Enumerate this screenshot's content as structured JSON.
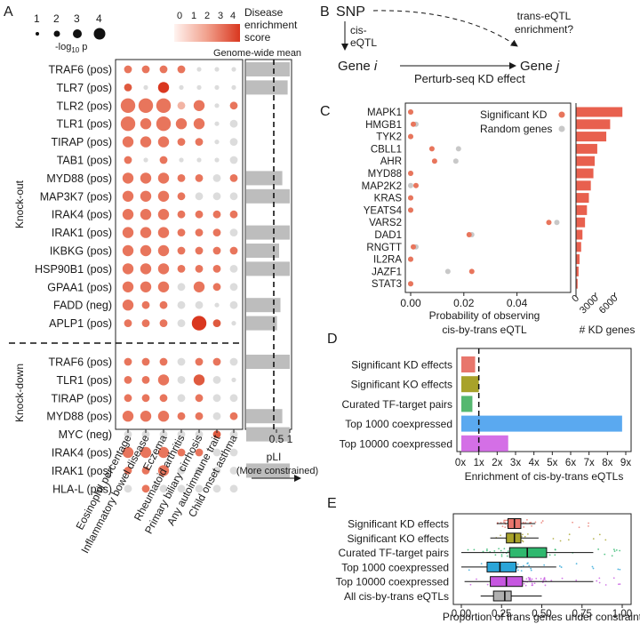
{
  "panels": {
    "a": "A",
    "b": "B",
    "c": "C",
    "d": "D",
    "e": "E"
  },
  "panel_a": {
    "size_legend": {
      "values": [
        "1",
        "2",
        "3",
        "4"
      ],
      "title": "-log",
      "title_sub": "10",
      "title_tail": " p"
    },
    "color_legend": {
      "ticks": [
        "0",
        "1",
        "2",
        "3",
        "4"
      ],
      "title_lines": [
        "Disease",
        "enrichment",
        "score"
      ],
      "low": "#fde9e5",
      "high": "#d9371f"
    },
    "genome_wide_label": "Genome-wide mean",
    "group_knockout": "Knock-out",
    "group_knockdown": "Knock-down",
    "diseases": [
      "Eosinophil percentage",
      "Inflammatory bowel disease",
      "Eczema",
      "Rheumatoid arthritis",
      "Primary biliary cirrhosis",
      "Any autoimmune trait",
      "Child onset asthma"
    ],
    "pli_axis": {
      "ticks": [
        "0.5",
        "1"
      ],
      "title": "pLI",
      "subtitle": "(More constrained)",
      "genome_wide_mean": 0.4
    },
    "dot_colors": {
      "sig": "#e8755c",
      "grey": "#d9d9d9"
    }
  },
  "panel_b": {
    "snp": "SNP",
    "cis_label_1": "cis-",
    "cis_label_2": "eQTL",
    "trans_label_1": "trans-eQTL",
    "trans_label_2": "enrichment?",
    "gene_i": "Gene ",
    "gene_i_var": "i",
    "gene_j": "Gene ",
    "gene_j_var": "j",
    "kd_effect": "Perturb-seq KD effect"
  },
  "panel_d": {
    "xlabel": "Enrichment of cis-by-trans eQTLs"
  },
  "panel_e": {
    "xlabel": "Proportion of trans genes under constraint"
  },
  "chart_data": [
    {
      "id": "A",
      "type": "scatter",
      "subtype": "dot-matrix with pLI bars",
      "rows": [
        {
          "group": "Knock-out",
          "gene": "TRAF6 (pos)",
          "sizes": [
            2,
            2,
            2,
            2,
            1,
            1,
            1
          ],
          "scores": [
            2,
            2,
            2,
            2,
            0,
            0,
            0
          ],
          "pli": 1.0
        },
        {
          "group": "Knock-out",
          "gene": "TLR7 (pos)",
          "sizes": [
            2,
            1,
            3,
            1,
            1,
            1,
            1
          ],
          "scores": [
            3,
            0,
            4,
            0,
            0,
            0,
            0
          ],
          "pli": 0.92
        },
        {
          "group": "Knock-out",
          "gene": "TLR2 (pos)",
          "sizes": [
            4,
            4,
            4,
            2,
            3,
            1,
            2
          ],
          "scores": [
            2,
            2,
            2,
            1,
            2,
            0,
            2
          ],
          "pli": 0.0
        },
        {
          "group": "Knock-out",
          "gene": "TLR1 (pos)",
          "sizes": [
            4,
            3,
            4,
            3,
            3,
            1,
            2
          ],
          "scores": [
            2,
            2,
            2,
            2,
            2,
            0,
            0
          ],
          "pli": 0.0
        },
        {
          "group": "Knock-out",
          "gene": "TIRAP (pos)",
          "sizes": [
            3,
            3,
            3,
            2,
            2,
            1,
            2
          ],
          "scores": [
            2,
            2,
            2,
            2,
            2,
            0,
            0
          ],
          "pli": 0.0
        },
        {
          "group": "Knock-out",
          "gene": "TAB1 (pos)",
          "sizes": [
            2,
            1,
            2,
            1,
            1,
            1,
            2
          ],
          "scores": [
            2,
            0,
            2,
            0,
            0,
            0,
            0
          ],
          "pli": 0.0
        },
        {
          "group": "Knock-out",
          "gene": "MYD88 (pos)",
          "sizes": [
            3,
            3,
            3,
            2,
            2,
            2,
            2
          ],
          "scores": [
            2,
            2,
            2,
            2,
            2,
            0,
            2
          ],
          "pli": 0.72
        },
        {
          "group": "Knock-out",
          "gene": "MAP3K7 (pos)",
          "sizes": [
            3,
            3,
            3,
            2,
            2,
            2,
            2
          ],
          "scores": [
            2,
            2,
            2,
            2,
            0,
            0,
            0
          ],
          "pli": 1.0
        },
        {
          "group": "Knock-out",
          "gene": "IRAK4 (pos)",
          "sizes": [
            3,
            3,
            3,
            2,
            2,
            2,
            2
          ],
          "scores": [
            2,
            2,
            2,
            2,
            2,
            2,
            2
          ],
          "pli": 0.0
        },
        {
          "group": "Knock-out",
          "gene": "IRAK1 (pos)",
          "sizes": [
            3,
            3,
            3,
            2,
            2,
            2,
            2
          ],
          "scores": [
            2,
            2,
            2,
            2,
            2,
            2,
            0
          ],
          "pli": 1.0
        },
        {
          "group": "Knock-out",
          "gene": "IKBKG (pos)",
          "sizes": [
            3,
            3,
            3,
            2,
            2,
            2,
            2
          ],
          "scores": [
            2,
            2,
            2,
            2,
            2,
            2,
            2
          ],
          "pli": 0.6
        },
        {
          "group": "Knock-out",
          "gene": "HSP90B1 (pos)",
          "sizes": [
            3,
            3,
            3,
            2,
            2,
            2,
            2
          ],
          "scores": [
            2,
            2,
            2,
            2,
            2,
            2,
            0
          ],
          "pli": 1.0
        },
        {
          "group": "Knock-out",
          "gene": "GPAA1 (pos)",
          "sizes": [
            3,
            3,
            3,
            2,
            3,
            2,
            2
          ],
          "scores": [
            2,
            2,
            2,
            0,
            2,
            2,
            0
          ],
          "pli": 0.0
        },
        {
          "group": "Knock-out",
          "gene": "FADD (neg)",
          "sizes": [
            3,
            2,
            2,
            2,
            2,
            1,
            2
          ],
          "scores": [
            2,
            2,
            2,
            0,
            0,
            0,
            0
          ],
          "pli": 0.65
        },
        {
          "group": "Knock-out",
          "gene": "APLP1 (pos)",
          "sizes": [
            2,
            2,
            2,
            2,
            4,
            2,
            1
          ],
          "scores": [
            2,
            2,
            2,
            0,
            4,
            3,
            0
          ],
          "pli": 0.52
        },
        {
          "group": "Knock-down",
          "gene": "TRAF6 (pos)",
          "sizes": [
            2,
            2,
            2,
            2,
            2,
            2,
            2
          ],
          "scores": [
            2,
            2,
            2,
            0,
            2,
            2,
            0
          ],
          "pli": 1.0
        },
        {
          "group": "Knock-down",
          "gene": "TLR1 (pos)",
          "sizes": [
            2,
            2,
            3,
            2,
            3,
            2,
            1
          ],
          "scores": [
            2,
            2,
            2,
            0,
            3,
            0,
            0
          ],
          "pli": 0.0
        },
        {
          "group": "Knock-down",
          "gene": "TIRAP (pos)",
          "sizes": [
            2,
            2,
            2,
            2,
            2,
            2,
            2
          ],
          "scores": [
            2,
            2,
            2,
            0,
            2,
            0,
            0
          ],
          "pli": 0.0
        },
        {
          "group": "Knock-down",
          "gene": "MYD88 (pos)",
          "sizes": [
            3,
            3,
            3,
            2,
            2,
            2,
            2
          ],
          "scores": [
            2,
            2,
            2,
            2,
            2,
            0,
            2
          ],
          "pli": 0.72
        },
        {
          "group": "Knock-down",
          "gene": "MYC (neg)",
          "sizes": [
            2,
            2,
            2,
            2,
            2,
            2,
            2
          ],
          "scores": [
            0,
            0,
            0,
            0,
            0,
            3,
            0
          ],
          "pli": 1.0
        },
        {
          "group": "Knock-down",
          "gene": "IRAK4 (pos)",
          "sizes": [
            3,
            3,
            3,
            2,
            2,
            2,
            2
          ],
          "scores": [
            2,
            2,
            2,
            2,
            2,
            0,
            0
          ],
          "pli": 0.0
        },
        {
          "group": "Knock-down",
          "gene": "IRAK1 (pos)",
          "sizes": [
            2,
            2,
            3,
            2,
            2,
            2,
            2
          ],
          "scores": [
            2,
            2,
            2,
            0,
            0,
            0,
            0
          ],
          "pli": 1.0
        },
        {
          "group": "Knock-down",
          "gene": "HLA-L (pos)",
          "sizes": [
            2,
            2,
            2,
            2,
            2,
            2,
            2
          ],
          "scores": [
            0,
            2,
            0,
            0,
            0,
            0,
            0
          ],
          "pli": 0.0
        }
      ]
    },
    {
      "id": "C",
      "type": "scatter",
      "xlabel_lines": [
        "Probability of observing",
        "cis-by-trans eQTL"
      ],
      "x_ticks": [
        "0.00",
        "0.02",
        "0.04"
      ],
      "xlim": [
        0,
        0.06
      ],
      "legend": [
        "Significant KD",
        "Random genes"
      ],
      "colors": {
        "sig": "#e8755c",
        "random": "#c8c8c8"
      },
      "genes": [
        "MAPK1",
        "HMGB1",
        "TYK2",
        "CBLL1",
        "AHR",
        "MYD88",
        "MAP2K2",
        "KRAS",
        "YEATS4",
        "VARS2",
        "DAD1",
        "RNGTT",
        "IL2RA",
        "JAZF1",
        "STAT3"
      ],
      "significant": [
        0.0,
        0.001,
        0.0,
        0.008,
        0.009,
        0.0,
        0.002,
        0.0,
        0.0,
        0.052,
        0.022,
        0.001,
        0.0,
        0.023,
        0.0
      ],
      "random": [
        0.0,
        0.002,
        0.0,
        0.018,
        0.017,
        0.0,
        0.0,
        0.0,
        0.0,
        0.055,
        0.023,
        0.002,
        0.0,
        0.014,
        0.0
      ],
      "kd_bar_label": "# KD genes",
      "kd_ticks": [
        "0",
        "3000",
        "6000"
      ],
      "kd_max": 8000,
      "kd_counts": [
        7200,
        5300,
        4700,
        3300,
        2900,
        2700,
        2300,
        2000,
        1700,
        1400,
        1000,
        800,
        550,
        400,
        250
      ],
      "bar_color": "#e8604e"
    },
    {
      "id": "D",
      "type": "bar",
      "orientation": "horizontal",
      "categories": [
        "Significant KD effects",
        "Significant KO effects",
        "Curated TF-target pairs",
        "Top 1000 coexpressed",
        "Top 10000 coexpressed"
      ],
      "values": [
        0.8,
        1.0,
        0.65,
        8.8,
        2.6
      ],
      "colors": [
        "#e8766c",
        "#a8a22a",
        "#55b870",
        "#5aa9f0",
        "#d46fe6"
      ],
      "x_ticks": [
        "0x",
        "1x",
        "2x",
        "3x",
        "4x",
        "5x",
        "6x",
        "7x",
        "8x",
        "9x"
      ],
      "xlim": [
        0,
        9
      ],
      "reference": 1,
      "xlabel": "Enrichment of cis-by-trans eQTLs"
    },
    {
      "id": "E",
      "type": "box",
      "orientation": "horizontal",
      "categories": [
        "Significant KD effects",
        "Significant KO effects",
        "Curated TF-target pairs",
        "Top 1000 coexpressed",
        "Top 10000 coexpressed",
        "All cis-by-trans eQTLs"
      ],
      "colors": [
        "#e8766c",
        "#a8a22a",
        "#2fb86e",
        "#2aa5d8",
        "#c657e0",
        "#b0b0b0"
      ],
      "q1": [
        0.29,
        0.28,
        0.3,
        0.16,
        0.18,
        0.2
      ],
      "median": [
        0.33,
        0.33,
        0.41,
        0.24,
        0.28,
        0.27
      ],
      "q3": [
        0.37,
        0.37,
        0.53,
        0.34,
        0.38,
        0.31
      ],
      "whisker_low": [
        0.22,
        0.18,
        0.0,
        0.0,
        0.02,
        0.12
      ],
      "whisker_high": [
        0.46,
        0.48,
        0.82,
        0.59,
        0.82,
        0.5
      ],
      "mean": [
        0.33,
        0.33,
        0.44,
        0.26,
        0.3,
        0.27
      ],
      "x_ticks": [
        "0.00",
        "0.25",
        "0.50",
        "0.75",
        "1.00"
      ],
      "xlim": [
        0,
        1
      ],
      "xlabel": "Proportion of trans genes under constraint"
    }
  ]
}
